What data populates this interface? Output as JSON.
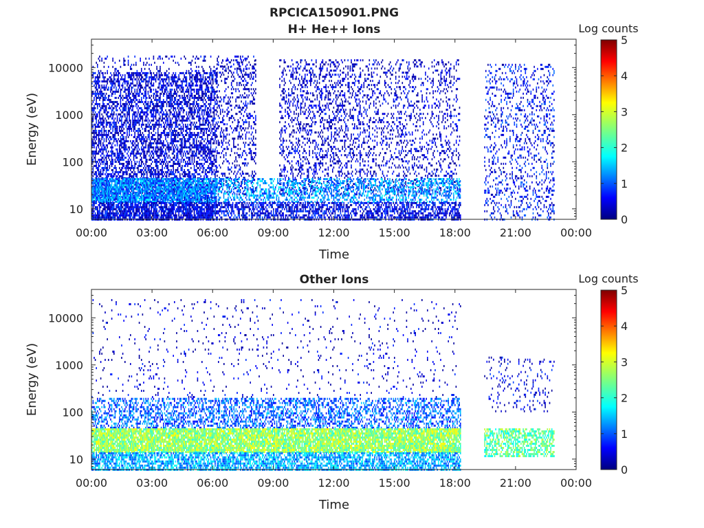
{
  "figure": {
    "title": "RPCICA150901.PNG"
  },
  "chart_data": [
    {
      "type": "heatmap",
      "title": "H+ He++ Ions",
      "xlabel": "Time",
      "ylabel": "Energy (eV)",
      "x_ticks": [
        "00:00",
        "03:00",
        "06:00",
        "09:00",
        "12:00",
        "15:00",
        "18:00",
        "21:00",
        "00:00"
      ],
      "xlim_hours": [
        0,
        24
      ],
      "y_ticks": [
        "10",
        "100",
        "1000",
        "10000"
      ],
      "y_tick_values": [
        10,
        100,
        1000,
        10000
      ],
      "ylim": [
        6,
        40000
      ],
      "y_scale": "log",
      "colorbar": {
        "label": "Log counts",
        "ticks": [
          "0",
          "1",
          "2",
          "3",
          "4",
          "5"
        ],
        "range": [
          0,
          5
        ],
        "colormap": "jet"
      },
      "data_gaps_hours": [
        [
          8.15,
          9.3
        ],
        [
          18.25,
          19.45
        ],
        [
          22.9,
          24
        ]
      ],
      "bands": [
        {
          "x": [
            0,
            6.2
          ],
          "e": [
            6,
            8000
          ],
          "log_counts": 0.3,
          "density": 0.55
        },
        {
          "x": [
            0,
            8.15
          ],
          "e": [
            8000,
            18000
          ],
          "log_counts": 0.2,
          "density": 0.12
        },
        {
          "x": [
            6.2,
            8.15
          ],
          "e": [
            20,
            15000
          ],
          "log_counts": 0.2,
          "density": 0.25
        },
        {
          "x": [
            9.3,
            13.3
          ],
          "e": [
            20,
            15000
          ],
          "log_counts": 0.2,
          "density": 0.28
        },
        {
          "x": [
            13.3,
            18.25
          ],
          "e": [
            20,
            15000
          ],
          "log_counts": 0.2,
          "density": 0.2
        },
        {
          "x": [
            0,
            6.2
          ],
          "e": [
            14,
            45
          ],
          "log_counts": 1.2,
          "density": 0.85
        },
        {
          "x": [
            6.2,
            18.25
          ],
          "e": [
            14,
            45
          ],
          "log_counts": 1.3,
          "density": 0.45
        },
        {
          "x": [
            0,
            18.25
          ],
          "e": [
            6,
            14
          ],
          "log_counts": 0.4,
          "density": 0.6
        },
        {
          "x": [
            19.45,
            22.9
          ],
          "e": [
            6,
            12000
          ],
          "log_counts": 0.5,
          "density": 0.2
        }
      ]
    },
    {
      "type": "heatmap",
      "title": "Other Ions",
      "xlabel": "Time",
      "ylabel": "Energy (eV)",
      "x_ticks": [
        "00:00",
        "03:00",
        "06:00",
        "09:00",
        "12:00",
        "15:00",
        "18:00",
        "21:00",
        "00:00"
      ],
      "xlim_hours": [
        0,
        24
      ],
      "y_ticks": [
        "10",
        "100",
        "1000",
        "10000"
      ],
      "y_tick_values": [
        10,
        100,
        1000,
        10000
      ],
      "ylim": [
        6,
        40000
      ],
      "y_scale": "log",
      "colorbar": {
        "label": "Log counts",
        "ticks": [
          "0",
          "1",
          "2",
          "3",
          "4",
          "5"
        ],
        "range": [
          0,
          5
        ],
        "colormap": "jet"
      },
      "data_gaps_hours": [
        [
          8.15,
          9.3
        ],
        [
          18.25,
          19.45
        ],
        [
          22.9,
          24
        ]
      ],
      "bands": [
        {
          "x": [
            0,
            18.25
          ],
          "e": [
            200,
            25000
          ],
          "log_counts": 0.2,
          "density": 0.04
        },
        {
          "x": [
            0,
            18.25
          ],
          "e": [
            45,
            200
          ],
          "log_counts": 1.0,
          "density": 0.45
        },
        {
          "x": [
            0,
            18.25
          ],
          "e": [
            14,
            45
          ],
          "log_counts": 2.6,
          "density": 0.9
        },
        {
          "x": [
            0,
            18.25
          ],
          "e": [
            6,
            14
          ],
          "log_counts": 1.4,
          "density": 0.7
        },
        {
          "x": [
            19.45,
            22.9
          ],
          "e": [
            100,
            1500
          ],
          "log_counts": 0.3,
          "density": 0.1
        },
        {
          "x": [
            19.45,
            22.9
          ],
          "e": [
            12,
            45
          ],
          "log_counts": 2.3,
          "density": 0.6
        }
      ]
    }
  ]
}
